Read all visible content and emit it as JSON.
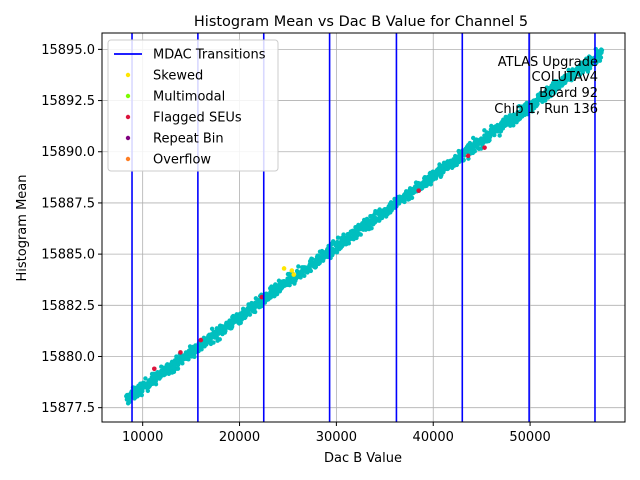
{
  "chart_data": {
    "type": "scatter",
    "title": "Histogram Mean vs Dac B Value for Channel 5",
    "xlabel": "Dac B Value",
    "ylabel": "Histogram Mean",
    "xlim": [
      5800,
      59800
    ],
    "ylim": [
      15876.8,
      15895.8
    ],
    "x_ticks": [
      10000,
      20000,
      30000,
      40000,
      50000
    ],
    "x_tick_labels": [
      "10000",
      "20000",
      "30000",
      "40000",
      "50000"
    ],
    "y_ticks": [
      15877.5,
      15880.0,
      15882.5,
      15885.0,
      15887.5,
      15890.0,
      15892.5,
      15895.0
    ],
    "y_tick_labels": [
      "15877.5",
      "15880.0",
      "15882.5",
      "15885.0",
      "15887.5",
      "15890.0",
      "15892.5",
      "15895.0"
    ],
    "grid": true,
    "legend_position": "top-left",
    "mdac_transitions": [
      8900,
      15700,
      22500,
      29300,
      36200,
      43000,
      49900,
      56700
    ],
    "main_trend": {
      "x_start": 8300,
      "y_start": 15877.9,
      "x_end": 57400,
      "y_end": 15894.8,
      "spread": 0.3,
      "color": "#00bfbf"
    },
    "series": [
      {
        "name": "MDAC Transitions",
        "marker": "line",
        "color": "#0000ff"
      },
      {
        "name": "Skewed",
        "marker": "dot",
        "color": "#ffe600",
        "points": [
          [
            24600,
            15884.3
          ],
          [
            25400,
            15884.2
          ],
          [
            25600,
            15884.0
          ]
        ]
      },
      {
        "name": "Multimodal",
        "marker": "dot",
        "color": "#7cfc00",
        "points": []
      },
      {
        "name": "Flagged SEUs",
        "marker": "dot",
        "color": "#dc143c",
        "points": [
          [
            11200,
            15879.4
          ],
          [
            13900,
            15880.2
          ],
          [
            16000,
            15880.8
          ],
          [
            22300,
            15882.9
          ],
          [
            38500,
            15888.1
          ],
          [
            43600,
            15889.8
          ],
          [
            45300,
            15890.2
          ]
        ]
      },
      {
        "name": "Repeat Bin",
        "marker": "dot",
        "color": "#800080",
        "points": []
      },
      {
        "name": "Overflow",
        "marker": "dot",
        "color": "#ff7f24",
        "points": []
      }
    ],
    "annotations": [
      "ATLAS Upgrade",
      "COLUTAv4",
      "Board 92",
      "Chip 1, Run 136"
    ]
  }
}
